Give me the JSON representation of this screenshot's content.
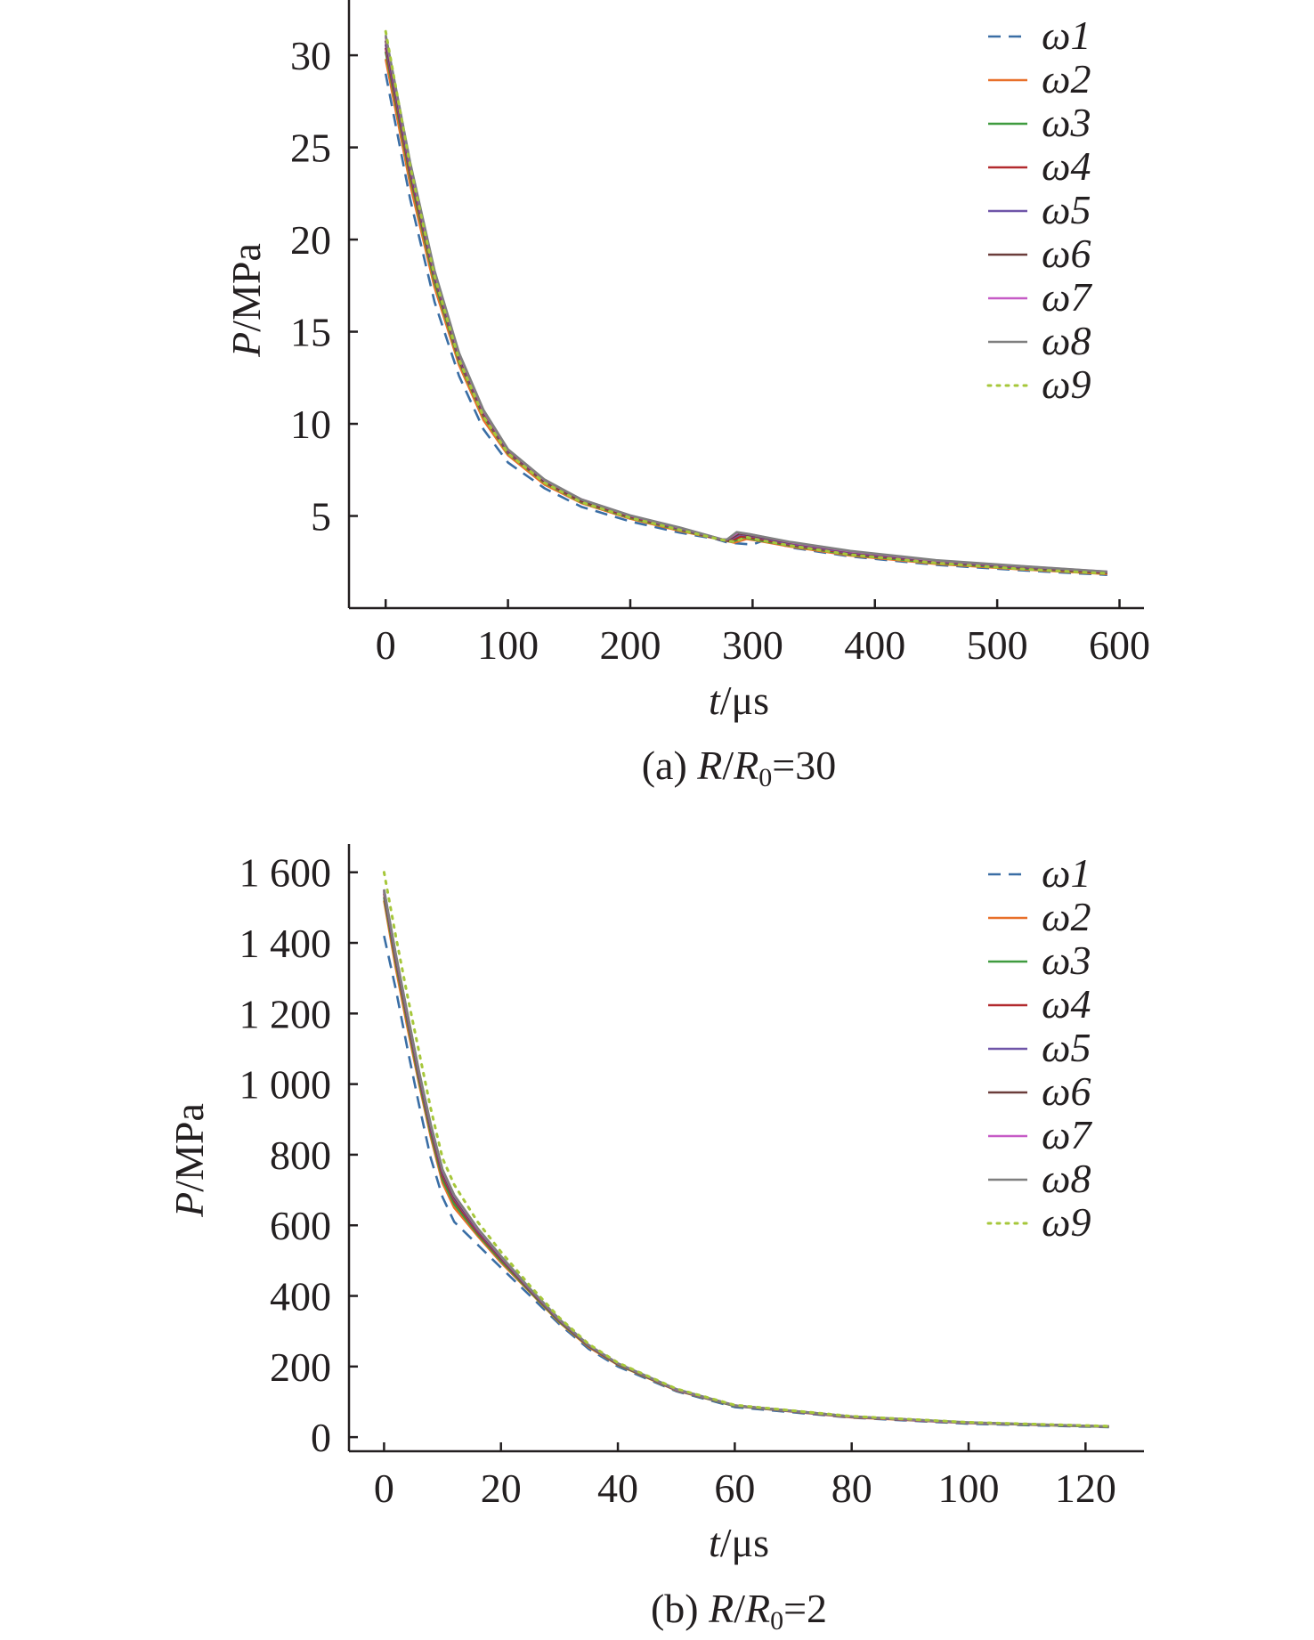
{
  "chart_data": [
    {
      "type": "line",
      "caption": {
        "prefix": "(a) ",
        "r": "R",
        "slash": "/",
        "r0": "R",
        "r0_sub": "0",
        "suffix": "=30"
      },
      "xlabel": {
        "var": "t",
        "unit": "/μs"
      },
      "ylabel": {
        "var": "P",
        "unit": "/MPa"
      },
      "xlim": [
        -30,
        620
      ],
      "ylim": [
        0,
        33
      ],
      "xticks": [
        0,
        100,
        200,
        300,
        400,
        500,
        600
      ],
      "xtick_labels": [
        "0",
        "100",
        "200",
        "300",
        "400",
        "500",
        "600"
      ],
      "yticks": [
        5,
        10,
        15,
        20,
        25,
        30
      ],
      "ytick_labels": [
        "5",
        "10",
        "15",
        "20",
        "25",
        "30"
      ],
      "grid": false,
      "legend_position": "top-right",
      "series": [
        {
          "name": "ω1",
          "color": "#3a6ea5",
          "dash": "dashed",
          "x": [
            0,
            20,
            40,
            60,
            80,
            100,
            130,
            160,
            200,
            240,
            270,
            280,
            290,
            300,
            312,
            330,
            380,
            450,
            520,
            590
          ],
          "y": [
            29.0,
            22.2,
            16.6,
            12.6,
            9.7,
            7.9,
            6.5,
            5.5,
            4.7,
            4.1,
            3.75,
            3.55,
            3.5,
            3.45,
            3.75,
            3.3,
            2.8,
            2.35,
            2.05,
            1.8
          ]
        },
        {
          "name": "ω2",
          "color": "#e8702a",
          "dash": "solid",
          "x": [
            0,
            20,
            40,
            60,
            80,
            100,
            130,
            160,
            200,
            240,
            275,
            285,
            295,
            305,
            330,
            380,
            450,
            520,
            590
          ],
          "y": [
            29.8,
            23.0,
            17.4,
            13.2,
            10.2,
            8.3,
            6.7,
            5.7,
            4.85,
            4.2,
            3.7,
            3.55,
            3.75,
            3.65,
            3.35,
            2.85,
            2.4,
            2.1,
            1.85
          ]
        },
        {
          "name": "ω3",
          "color": "#3f9b3f",
          "dash": "solid",
          "x": [
            0,
            20,
            40,
            60,
            80,
            100,
            130,
            160,
            200,
            240,
            275,
            283,
            293,
            303,
            330,
            380,
            450,
            520,
            590
          ],
          "y": [
            30.2,
            23.4,
            17.7,
            13.4,
            10.4,
            8.4,
            6.8,
            5.75,
            4.9,
            4.25,
            3.7,
            3.6,
            3.85,
            3.7,
            3.4,
            2.9,
            2.45,
            2.15,
            1.9
          ]
        },
        {
          "name": "ω4",
          "color": "#b22a2e",
          "dash": "solid",
          "x": [
            0,
            20,
            40,
            60,
            80,
            100,
            130,
            160,
            200,
            240,
            275,
            282,
            291,
            301,
            330,
            380,
            450,
            520,
            590
          ],
          "y": [
            30.4,
            23.6,
            17.9,
            13.5,
            10.5,
            8.45,
            6.85,
            5.8,
            4.95,
            4.3,
            3.7,
            3.65,
            3.9,
            3.8,
            3.45,
            2.95,
            2.5,
            2.2,
            1.92
          ]
        },
        {
          "name": "ω5",
          "color": "#6f55a8",
          "dash": "solid",
          "x": [
            0,
            20,
            40,
            60,
            80,
            100,
            130,
            160,
            200,
            240,
            275,
            281,
            290,
            300,
            330,
            380,
            450,
            520,
            590
          ],
          "y": [
            30.6,
            23.8,
            18.0,
            13.6,
            10.6,
            8.5,
            6.9,
            5.85,
            5.0,
            4.32,
            3.72,
            3.7,
            4.0,
            3.9,
            3.5,
            3.0,
            2.52,
            2.22,
            1.95
          ]
        },
        {
          "name": "ω6",
          "color": "#6b3d3a",
          "dash": "solid",
          "x": [
            0,
            20,
            40,
            60,
            80,
            100,
            130,
            160,
            200,
            240,
            275,
            280,
            289,
            299,
            330,
            380,
            450,
            520,
            590
          ],
          "y": [
            30.8,
            24.0,
            18.1,
            13.7,
            10.65,
            8.55,
            6.9,
            5.85,
            5.0,
            4.35,
            3.72,
            3.7,
            4.05,
            3.95,
            3.55,
            3.05,
            2.55,
            2.25,
            1.95
          ]
        },
        {
          "name": "ω7",
          "color": "#c65bc6",
          "dash": "solid",
          "x": [
            0,
            20,
            40,
            60,
            80,
            100,
            130,
            160,
            200,
            240,
            275,
            279,
            288,
            298,
            330,
            380,
            450,
            520,
            590
          ],
          "y": [
            31.0,
            24.1,
            18.2,
            13.8,
            10.7,
            8.6,
            6.95,
            5.9,
            5.02,
            4.37,
            3.73,
            3.72,
            4.1,
            4.0,
            3.58,
            3.08,
            2.58,
            2.27,
            1.97
          ]
        },
        {
          "name": "ω8",
          "color": "#7f7f7f",
          "dash": "solid",
          "x": [
            0,
            20,
            40,
            60,
            80,
            100,
            130,
            160,
            200,
            240,
            275,
            279,
            287,
            297,
            330,
            380,
            450,
            520,
            590
          ],
          "y": [
            31.1,
            24.2,
            18.3,
            13.85,
            10.75,
            8.62,
            6.97,
            5.9,
            5.03,
            4.38,
            3.73,
            3.72,
            4.12,
            4.02,
            3.6,
            3.1,
            2.6,
            2.28,
            1.98
          ]
        },
        {
          "name": "ω9",
          "color": "#a6c73a",
          "dash": "dotted",
          "x": [
            0,
            20,
            40,
            60,
            80,
            100,
            130,
            160,
            200,
            240,
            275,
            285,
            295,
            305,
            330,
            380,
            450,
            520,
            590
          ],
          "y": [
            31.3,
            24.0,
            18.0,
            13.5,
            10.4,
            8.4,
            6.8,
            5.75,
            4.9,
            4.25,
            3.7,
            3.6,
            3.85,
            3.7,
            3.4,
            2.9,
            2.45,
            2.12,
            1.88
          ]
        }
      ]
    },
    {
      "type": "line",
      "caption": {
        "prefix": "(b) ",
        "r": "R",
        "slash": "/",
        "r0": "R",
        "r0_sub": "0",
        "suffix": "=2"
      },
      "xlabel": {
        "var": "t",
        "unit": "/μs"
      },
      "ylabel": {
        "var": "P",
        "unit": "/MPa"
      },
      "xlim": [
        -6,
        130
      ],
      "ylim": [
        -40,
        1680
      ],
      "xticks": [
        0,
        20,
        40,
        60,
        80,
        100,
        120
      ],
      "xtick_labels": [
        "0",
        "20",
        "40",
        "60",
        "80",
        "100",
        "120"
      ],
      "yticks": [
        0,
        200,
        400,
        600,
        800,
        1000,
        1200,
        1400,
        1600
      ],
      "ytick_labels": [
        "0",
        "200",
        "400",
        "600",
        "800",
        "1 000",
        "1 200",
        "1 400",
        "1 600"
      ],
      "grid": false,
      "legend_position": "top-right",
      "series": [
        {
          "name": "ω1",
          "color": "#3a6ea5",
          "dash": "dashed",
          "x": [
            0,
            2,
            4,
            6,
            8,
            10,
            12,
            16,
            20,
            25,
            30,
            35,
            40,
            50,
            60,
            80,
            100,
            124
          ],
          "y": [
            1420,
            1270,
            1100,
            940,
            790,
            680,
            610,
            545,
            480,
            400,
            320,
            250,
            200,
            130,
            85,
            55,
            38,
            28
          ]
        },
        {
          "name": "ω2",
          "color": "#e8702a",
          "dash": "solid",
          "x": [
            0,
            2,
            4,
            6,
            8,
            10,
            12,
            16,
            20,
            25,
            30,
            35,
            40,
            50,
            60,
            80,
            100,
            124
          ],
          "y": [
            1520,
            1330,
            1160,
            1000,
            850,
            720,
            650,
            570,
            495,
            410,
            325,
            255,
            205,
            132,
            88,
            56,
            40,
            29
          ]
        },
        {
          "name": "ω3",
          "color": "#3f9b3f",
          "dash": "solid",
          "x": [
            0,
            2,
            4,
            6,
            8,
            10,
            12,
            16,
            20,
            25,
            30,
            35,
            40,
            50,
            60,
            80,
            100,
            124
          ],
          "y": [
            1530,
            1345,
            1175,
            1010,
            860,
            730,
            660,
            575,
            500,
            412,
            327,
            257,
            206,
            133,
            88,
            57,
            40,
            29
          ]
        },
        {
          "name": "ω4",
          "color": "#b22a2e",
          "dash": "solid",
          "x": [
            0,
            2,
            4,
            6,
            8,
            10,
            12,
            16,
            20,
            25,
            30,
            35,
            40,
            50,
            60,
            80,
            100,
            124
          ],
          "y": [
            1540,
            1355,
            1185,
            1020,
            870,
            740,
            670,
            580,
            505,
            415,
            330,
            258,
            207,
            134,
            89,
            57,
            41,
            30
          ]
        },
        {
          "name": "ω5",
          "color": "#6f55a8",
          "dash": "solid",
          "x": [
            0,
            2,
            4,
            6,
            8,
            10,
            12,
            16,
            20,
            25,
            30,
            35,
            40,
            50,
            60,
            80,
            100,
            124
          ],
          "y": [
            1545,
            1360,
            1190,
            1025,
            875,
            748,
            676,
            585,
            508,
            417,
            331,
            259,
            208,
            134,
            89,
            57,
            41,
            30
          ]
        },
        {
          "name": "ω6",
          "color": "#6b3d3a",
          "dash": "solid",
          "x": [
            0,
            2,
            4,
            6,
            8,
            10,
            12,
            16,
            20,
            25,
            30,
            35,
            40,
            50,
            60,
            80,
            100,
            124
          ],
          "y": [
            1548,
            1365,
            1195,
            1030,
            880,
            752,
            680,
            588,
            510,
            418,
            332,
            260,
            208,
            135,
            90,
            58,
            41,
            30
          ]
        },
        {
          "name": "ω7",
          "color": "#c65bc6",
          "dash": "solid",
          "x": [
            0,
            2,
            4,
            6,
            8,
            10,
            12,
            16,
            20,
            25,
            30,
            35,
            40,
            50,
            60,
            80,
            100,
            124
          ],
          "y": [
            1550,
            1368,
            1198,
            1033,
            884,
            756,
            684,
            590,
            512,
            419,
            333,
            261,
            209,
            135,
            90,
            58,
            41,
            30
          ]
        },
        {
          "name": "ω8",
          "color": "#7f7f7f",
          "dash": "solid",
          "x": [
            0,
            2,
            4,
            6,
            8,
            10,
            12,
            16,
            20,
            25,
            30,
            35,
            40,
            50,
            60,
            80,
            100,
            124
          ],
          "y": [
            1552,
            1370,
            1200,
            1035,
            886,
            758,
            686,
            592,
            513,
            420,
            334,
            261,
            209,
            136,
            90,
            58,
            42,
            30
          ]
        },
        {
          "name": "ω9",
          "color": "#a6c73a",
          "dash": "dotted",
          "x": [
            0,
            2,
            4,
            6,
            8,
            10,
            12,
            16,
            20,
            25,
            30,
            35,
            40,
            50,
            60,
            80,
            100,
            124
          ],
          "y": [
            1600,
            1420,
            1250,
            1090,
            930,
            790,
            715,
            610,
            525,
            428,
            338,
            264,
            211,
            137,
            91,
            59,
            42,
            31
          ]
        }
      ]
    }
  ]
}
